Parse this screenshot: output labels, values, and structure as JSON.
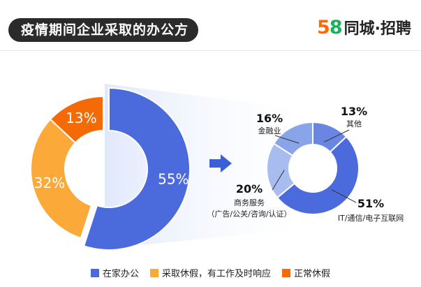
{
  "header": {
    "title": "疫情期间企业采取的办公方式",
    "logo_num_a": "5",
    "logo_num_b": "8",
    "logo_text": "同城·招聘"
  },
  "colors": {
    "blue": "#4b6bdc",
    "orange_light": "#fbaa3a",
    "orange_dark": "#f46a07",
    "light_blue": "#a8bcef",
    "mid_blue": "#8aa4ea"
  },
  "chart_data": [
    {
      "type": "pie",
      "style": "donut",
      "series": [
        {
          "name": "在家办公",
          "value": 55,
          "label": "55%",
          "color": "#4b6bdc"
        },
        {
          "name": "采取休假，有工作及时响应",
          "value": 32,
          "label": "32%",
          "color": "#fbaa3a"
        },
        {
          "name": "正常休假",
          "value": 13,
          "label": "13%",
          "color": "#f46a07"
        }
      ],
      "legend_position": "bottom"
    },
    {
      "type": "pie",
      "style": "donut",
      "breakdown_of": "在家办公",
      "series": [
        {
          "name": "其他",
          "value": 13,
          "label": "13%"
        },
        {
          "name": "IT/通信/电子互联网",
          "value": 51,
          "label": "51%"
        },
        {
          "name": "商务服务",
          "sublabel": "（广告/公关/咨询/认证）",
          "value": 20,
          "label": "20%"
        },
        {
          "name": "金融业",
          "value": 16,
          "label": "16%"
        }
      ]
    }
  ]
}
